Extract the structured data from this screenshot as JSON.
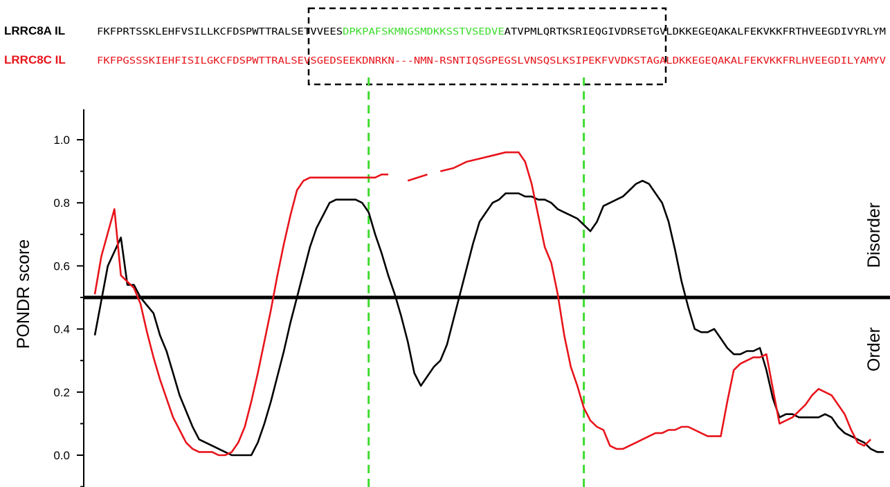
{
  "header": {
    "seq_a": {
      "label": "LRRC8A IL",
      "pre": "FKFPRTSSKLEHFVSILLKCFDSPWTTRALSETVVEES",
      "highlight": "DPKPAFSKMNGSMDKKSSTVSEDVE",
      "post": "ATVPMLQRTKSRIEQGIVDRSETGVLDKKEGEQAKALFEKVKKFRTHVEEGDIVYRLYM"
    },
    "seq_c": {
      "label": "LRRC8C IL",
      "text": "FKFPGSSSKIEHFISILGKCFDSPWTTRALSEVSGEDSEEKDNRKN---NMN-RSNTIQSGPEGSLVNSQSLKSIPEKFVVDKSTAGALDKKEGEQAKALFEKVKKFRLHVEEGDILYAMYV"
    }
  },
  "side_labels": {
    "upper": "Disorder",
    "lower": "Order"
  },
  "colors": {
    "a": "#000000",
    "c": "#e8141b",
    "highlight": "#3ddc2e",
    "threshold": "#000000",
    "marker": "#3ddc2e"
  },
  "chart_data": {
    "type": "line",
    "title": "",
    "xlabel": "",
    "ylabel": "PONDR score",
    "ylim": [
      -0.08,
      1.08
    ],
    "yticks": [
      "0.0",
      "0.2",
      "0.4",
      "0.6",
      "0.8",
      "1.0"
    ],
    "xlim": [
      1,
      128
    ],
    "threshold": 0.5,
    "markers": [
      43,
      76
    ],
    "series": [
      {
        "name": "LRRC8A IL",
        "points": [
          [
            1,
            0.38
          ],
          [
            3,
            0.6
          ],
          [
            5,
            0.69
          ],
          [
            6,
            0.54
          ],
          [
            7,
            0.54
          ],
          [
            8,
            0.5
          ],
          [
            10,
            0.45
          ],
          [
            11,
            0.38
          ],
          [
            12,
            0.33
          ],
          [
            13,
            0.26
          ],
          [
            14,
            0.19
          ],
          [
            15,
            0.14
          ],
          [
            16,
            0.09
          ],
          [
            17,
            0.05
          ],
          [
            18,
            0.04
          ],
          [
            19,
            0.03
          ],
          [
            20,
            0.02
          ],
          [
            21,
            0.01
          ],
          [
            22,
            0.0
          ],
          [
            23,
            0.0
          ],
          [
            24,
            0.0
          ],
          [
            25,
            0.0
          ],
          [
            26,
            0.04
          ],
          [
            27,
            0.1
          ],
          [
            28,
            0.17
          ],
          [
            29,
            0.25
          ],
          [
            30,
            0.33
          ],
          [
            31,
            0.42
          ],
          [
            32,
            0.5
          ],
          [
            33,
            0.58
          ],
          [
            34,
            0.66
          ],
          [
            35,
            0.72
          ],
          [
            36,
            0.76
          ],
          [
            37,
            0.8
          ],
          [
            38,
            0.81
          ],
          [
            39,
            0.81
          ],
          [
            40,
            0.81
          ],
          [
            41,
            0.81
          ],
          [
            42,
            0.8
          ],
          [
            43,
            0.77
          ],
          [
            44,
            0.7
          ],
          [
            45,
            0.64
          ],
          [
            46,
            0.57
          ],
          [
            47,
            0.51
          ],
          [
            48,
            0.44
          ],
          [
            49,
            0.36
          ],
          [
            50,
            0.26
          ],
          [
            51,
            0.22
          ],
          [
            52,
            0.25
          ],
          [
            53,
            0.28
          ],
          [
            54,
            0.3
          ],
          [
            55,
            0.35
          ],
          [
            56,
            0.43
          ],
          [
            57,
            0.51
          ],
          [
            58,
            0.59
          ],
          [
            59,
            0.67
          ],
          [
            60,
            0.74
          ],
          [
            61,
            0.77
          ],
          [
            62,
            0.8
          ],
          [
            63,
            0.81
          ],
          [
            64,
            0.83
          ],
          [
            65,
            0.83
          ],
          [
            66,
            0.83
          ],
          [
            67,
            0.82
          ],
          [
            68,
            0.82
          ],
          [
            69,
            0.81
          ],
          [
            70,
            0.81
          ],
          [
            71,
            0.8
          ],
          [
            72,
            0.78
          ],
          [
            73,
            0.77
          ],
          [
            74,
            0.76
          ],
          [
            75,
            0.75
          ],
          [
            76,
            0.73
          ],
          [
            77,
            0.71
          ],
          [
            78,
            0.74
          ],
          [
            79,
            0.79
          ],
          [
            80,
            0.8
          ],
          [
            81,
            0.81
          ],
          [
            82,
            0.82
          ],
          [
            83,
            0.84
          ],
          [
            84,
            0.86
          ],
          [
            85,
            0.87
          ],
          [
            86,
            0.86
          ],
          [
            87,
            0.83
          ],
          [
            88,
            0.8
          ],
          [
            89,
            0.74
          ],
          [
            90,
            0.65
          ],
          [
            91,
            0.55
          ],
          [
            92,
            0.47
          ],
          [
            93,
            0.4
          ],
          [
            94,
            0.39
          ],
          [
            95,
            0.39
          ],
          [
            96,
            0.4
          ],
          [
            97,
            0.37
          ],
          [
            98,
            0.34
          ],
          [
            99,
            0.32
          ],
          [
            100,
            0.32
          ],
          [
            101,
            0.33
          ],
          [
            102,
            0.33
          ],
          [
            103,
            0.34
          ],
          [
            104,
            0.27
          ],
          [
            105,
            0.18
          ],
          [
            106,
            0.12
          ],
          [
            107,
            0.13
          ],
          [
            108,
            0.13
          ],
          [
            109,
            0.12
          ],
          [
            110,
            0.12
          ],
          [
            111,
            0.12
          ],
          [
            112,
            0.12
          ],
          [
            113,
            0.13
          ],
          [
            114,
            0.12
          ],
          [
            115,
            0.09
          ],
          [
            116,
            0.07
          ],
          [
            117,
            0.06
          ],
          [
            118,
            0.05
          ],
          [
            119,
            0.04
          ],
          [
            120,
            0.02
          ],
          [
            121,
            0.01
          ],
          [
            122,
            0.01
          ]
        ]
      },
      {
        "name": "LRRC8C IL",
        "segments": [
          [
            [
              1,
              0.51
            ],
            [
              2,
              0.63
            ],
            [
              4,
              0.78
            ],
            [
              5,
              0.57
            ],
            [
              6,
              0.55
            ],
            [
              7,
              0.53
            ],
            [
              8,
              0.48
            ],
            [
              9,
              0.39
            ],
            [
              10,
              0.31
            ],
            [
              11,
              0.24
            ],
            [
              12,
              0.18
            ],
            [
              13,
              0.12
            ],
            [
              14,
              0.08
            ],
            [
              15,
              0.04
            ],
            [
              16,
              0.02
            ],
            [
              17,
              0.01
            ],
            [
              18,
              0.01
            ],
            [
              19,
              0.01
            ],
            [
              20,
              0.0
            ],
            [
              21,
              0.0
            ],
            [
              22,
              0.01
            ],
            [
              23,
              0.04
            ],
            [
              24,
              0.09
            ],
            [
              25,
              0.17
            ],
            [
              26,
              0.26
            ],
            [
              27,
              0.36
            ],
            [
              28,
              0.46
            ],
            [
              29,
              0.57
            ],
            [
              30,
              0.67
            ],
            [
              31,
              0.76
            ],
            [
              32,
              0.84
            ],
            [
              33,
              0.87
            ],
            [
              34,
              0.88
            ],
            [
              35,
              0.88
            ],
            [
              36,
              0.88
            ],
            [
              37,
              0.88
            ],
            [
              38,
              0.88
            ],
            [
              39,
              0.88
            ],
            [
              40,
              0.88
            ],
            [
              41,
              0.88
            ],
            [
              42,
              0.88
            ],
            [
              43,
              0.88
            ],
            [
              44,
              0.88
            ],
            [
              45,
              0.89
            ],
            [
              46,
              0.89
            ]
          ],
          [
            [
              49,
              0.87
            ],
            [
              52,
              0.89
            ]
          ],
          [
            [
              54,
              0.9
            ],
            [
              56,
              0.91
            ],
            [
              58,
              0.93
            ],
            [
              60,
              0.94
            ],
            [
              62,
              0.95
            ],
            [
              64,
              0.96
            ],
            [
              66,
              0.96
            ],
            [
              67,
              0.93
            ],
            [
              68,
              0.86
            ],
            [
              69,
              0.76
            ],
            [
              70,
              0.66
            ],
            [
              71,
              0.61
            ],
            [
              72,
              0.51
            ],
            [
              73,
              0.38
            ],
            [
              74,
              0.28
            ],
            [
              75,
              0.22
            ],
            [
              76,
              0.15
            ],
            [
              77,
              0.11
            ],
            [
              78,
              0.09
            ],
            [
              79,
              0.08
            ],
            [
              80,
              0.03
            ],
            [
              81,
              0.02
            ],
            [
              82,
              0.02
            ],
            [
              83,
              0.03
            ],
            [
              84,
              0.04
            ],
            [
              85,
              0.05
            ],
            [
              86,
              0.06
            ],
            [
              87,
              0.07
            ],
            [
              88,
              0.07
            ],
            [
              89,
              0.08
            ],
            [
              90,
              0.08
            ],
            [
              91,
              0.09
            ],
            [
              92,
              0.09
            ],
            [
              93,
              0.08
            ],
            [
              94,
              0.07
            ],
            [
              95,
              0.06
            ],
            [
              96,
              0.06
            ],
            [
              97,
              0.06
            ],
            [
              98,
              0.17
            ],
            [
              99,
              0.27
            ],
            [
              100,
              0.29
            ],
            [
              101,
              0.3
            ],
            [
              102,
              0.31
            ],
            [
              103,
              0.31
            ],
            [
              104,
              0.32
            ],
            [
              105,
              0.21
            ],
            [
              106,
              0.1
            ],
            [
              107,
              0.11
            ],
            [
              108,
              0.12
            ],
            [
              109,
              0.14
            ],
            [
              110,
              0.16
            ],
            [
              111,
              0.19
            ],
            [
              112,
              0.21
            ],
            [
              113,
              0.2
            ],
            [
              114,
              0.19
            ],
            [
              115,
              0.16
            ],
            [
              116,
              0.13
            ],
            [
              117,
              0.08
            ],
            [
              118,
              0.04
            ],
            [
              119,
              0.03
            ],
            [
              120,
              0.05
            ]
          ]
        ]
      }
    ]
  }
}
